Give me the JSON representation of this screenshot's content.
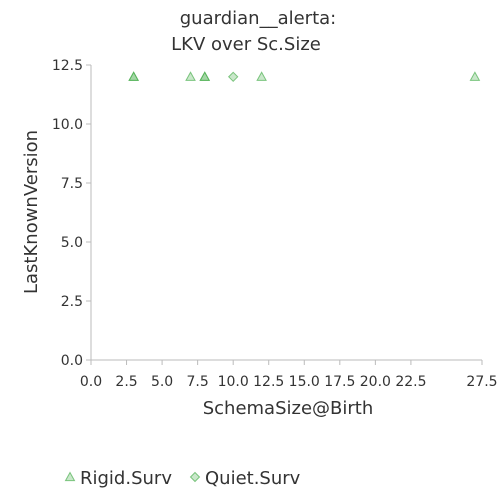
{
  "chart_data": {
    "type": "scatter",
    "title_lines": [
      "guardian__alerta:",
      "LKV over Sc.Size"
    ],
    "xlabel": "SchemaSize@Birth",
    "ylabel": "LastKnownVersion",
    "xlim": [
      0,
      27.5
    ],
    "ylim": [
      0,
      12.5
    ],
    "x_ticks": [
      "0.0",
      "2.5",
      "5.0",
      "7.5",
      "10.0",
      "12.5",
      "15.0",
      "17.5",
      "20.0",
      "22.5",
      "27.5"
    ],
    "x_tick_values": [
      0,
      2.5,
      5,
      7.5,
      10,
      12.5,
      15,
      17.5,
      20,
      22.5,
      27.5
    ],
    "y_ticks": [
      "0.0",
      "2.5",
      "5.0",
      "7.5",
      "10.0",
      "12.5"
    ],
    "y_tick_values": [
      0,
      2.5,
      5,
      7.5,
      10,
      12.5
    ],
    "grid": false,
    "legend_position": "bottom-left",
    "series": [
      {
        "name": "Rigid.Surv",
        "marker": "triangle",
        "color": "#4caf50",
        "points": [
          {
            "x": 3,
            "y": 12
          },
          {
            "x": 3,
            "y": 12
          },
          {
            "x": 7,
            "y": 12
          },
          {
            "x": 8,
            "y": 12
          },
          {
            "x": 8,
            "y": 12
          },
          {
            "x": 12,
            "y": 12
          },
          {
            "x": 27,
            "y": 12
          }
        ]
      },
      {
        "name": "Quiet.Surv",
        "marker": "diamond",
        "color": "#4caf50",
        "points": [
          {
            "x": 10,
            "y": 12
          }
        ]
      }
    ]
  }
}
